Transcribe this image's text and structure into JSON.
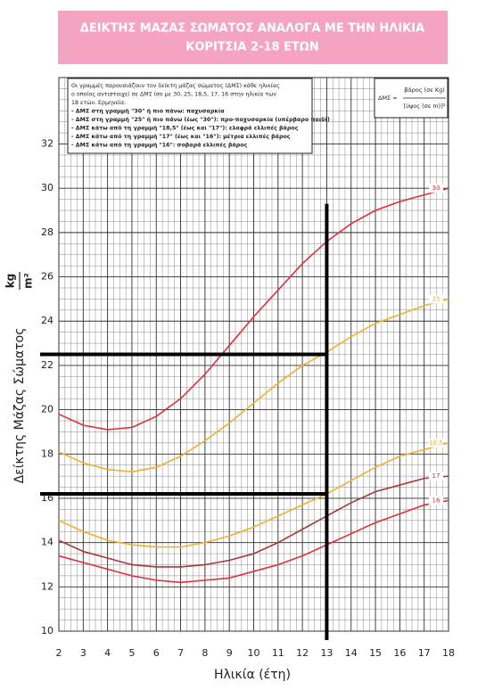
{
  "chart_data": {
    "type": "line",
    "title": [
      "ΔΕΙΚΤΗΣ ΜΑΖΑΣ ΣΩΜΑΤΟΣ ΑΝΑΛΟΓΑ ΜΕ ΤΗΝ ΗΛΙΚΙΑ",
      "ΚΟΡΙΤΣΙΑ 2-18 ΕΤΩΝ"
    ],
    "x_label": "Ηλικία (έτη)",
    "y_label": "Δείκτης Μάζας Σώματος",
    "y_unit": {
      "numerator": "kg",
      "denominator": "m²"
    },
    "notes": [
      "Οι γραμμές παρουσιάζουν τον δείκτη μάζας σώματος (ΔΜΣ) κάθε ηλικίας",
      "ο οποίος αντιστοιχεί σε ΔΜΣ ίσο με 30, 25, 18,5, 17, 16 στην ηλικία των",
      "18 ετών. Ερμηνεία:",
      "- ΔΜΣ στη γραμμή \"30\" ή πιο πάνω: παχυσαρκία",
      "- ΔΜΣ στη γραμμή \"25\" ή πιο πάνω (έως \"30\"): προ-παχυσαρκία (υπέρβαρο παιδί)",
      "- ΔΜΣ κάτω από τη γραμμή \"18,5\" (έως και \"17\"): ελαφρά ελλιπές βάρος",
      "- ΔΜΣ κάτω από τη γραμμή \"17\" (έως και \"16\"): μέτρια ελλιπές βάρος",
      "- ΔΜΣ κάτω από τη γραμμή \"16\": σοβαρά ελλιπές βάρος"
    ],
    "formula": {
      "lhs": "ΔΜΣ =",
      "numerator": "βάρος (σε Kg)",
      "denominator": "[ύψος (σε m)]²"
    },
    "x": [
      2,
      3,
      4,
      5,
      6,
      7,
      8,
      9,
      10,
      11,
      12,
      13,
      14,
      15,
      16,
      17,
      18
    ],
    "xlim": [
      2,
      18
    ],
    "xticks": [
      2,
      3,
      4,
      5,
      6,
      7,
      8,
      9,
      10,
      11,
      12,
      13,
      14,
      15,
      16,
      17,
      18
    ],
    "ylim": [
      10,
      35
    ],
    "yticks": [
      10,
      12,
      14,
      16,
      18,
      20,
      22,
      24,
      26,
      28,
      30,
      32
    ],
    "grid": true,
    "minor_grid": {
      "x_step": 0.25,
      "y_step": 0.5
    },
    "series": [
      {
        "name": "30",
        "color": "#e0303a",
        "values": [
          19.8,
          19.3,
          19.1,
          19.2,
          19.7,
          20.5,
          21.6,
          22.9,
          24.2,
          25.4,
          26.6,
          27.6,
          28.4,
          29.0,
          29.4,
          29.7,
          30.0
        ]
      },
      {
        "name": "25",
        "color": "#f0b030",
        "values": [
          18.1,
          17.6,
          17.3,
          17.2,
          17.4,
          17.9,
          18.6,
          19.4,
          20.3,
          21.2,
          22.0,
          22.6,
          23.3,
          23.9,
          24.3,
          24.7,
          25.0
        ]
      },
      {
        "name": "18.5",
        "color": "#f0b030",
        "values": [
          15.0,
          14.5,
          14.1,
          13.9,
          13.8,
          13.8,
          14.0,
          14.3,
          14.7,
          15.2,
          15.7,
          16.2,
          16.8,
          17.4,
          17.9,
          18.2,
          18.5
        ]
      },
      {
        "name": "17",
        "color": "#a83838",
        "values": [
          14.1,
          13.6,
          13.3,
          13.0,
          12.9,
          12.9,
          13.0,
          13.2,
          13.5,
          14.0,
          14.6,
          15.2,
          15.8,
          16.3,
          16.6,
          16.9,
          17.0
        ]
      },
      {
        "name": "16",
        "color": "#e0303a",
        "values": [
          13.4,
          13.1,
          12.8,
          12.5,
          12.3,
          12.2,
          12.3,
          12.4,
          12.7,
          13.0,
          13.4,
          13.9,
          14.4,
          14.9,
          15.3,
          15.7,
          15.9
        ]
      }
    ],
    "guides": {
      "age": 13,
      "bmi": [
        22.5,
        16.2
      ],
      "top": 29.3
    }
  }
}
